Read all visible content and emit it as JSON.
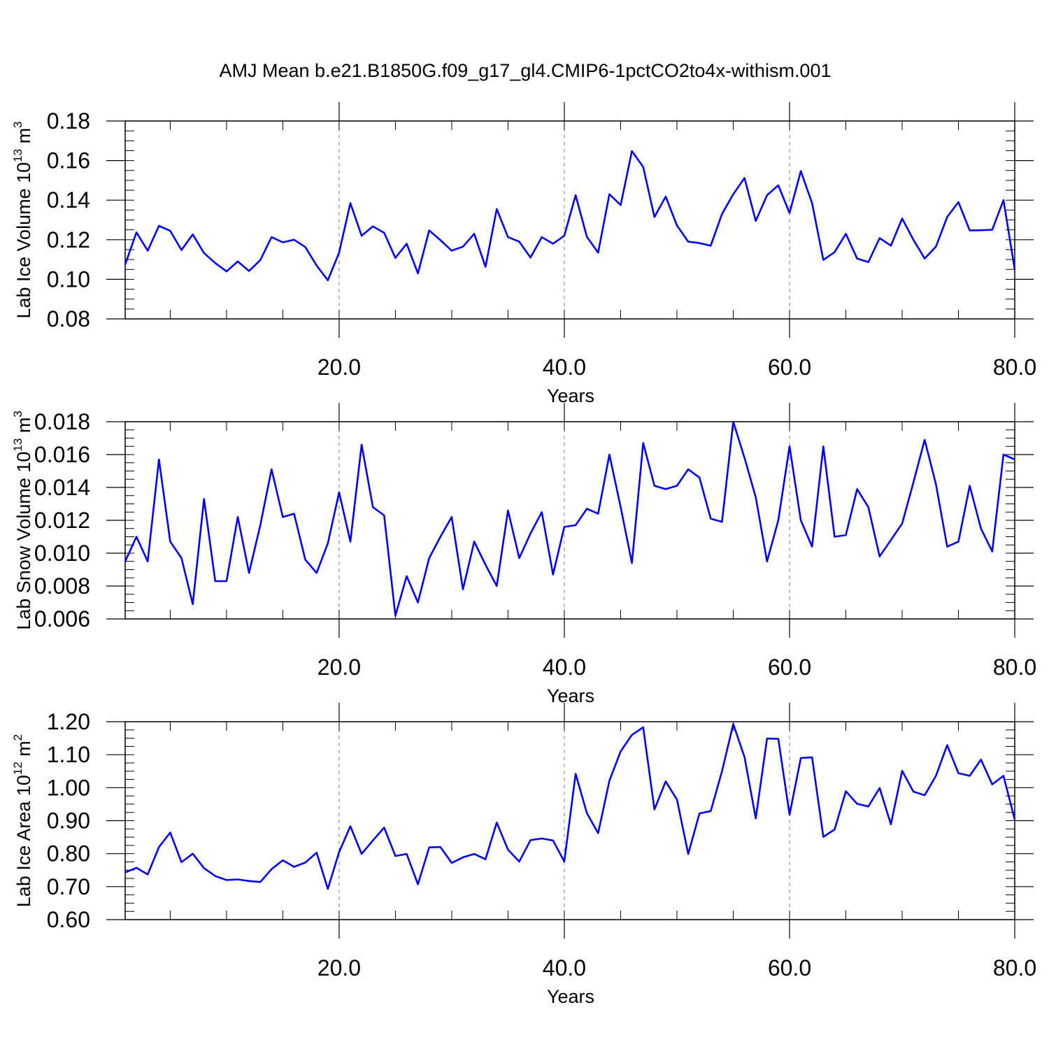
{
  "title": "AMJ Mean b.e21.B1850G.f09_g17_gl4.CMIP6-1pctCO2to4x-withism.001",
  "colors": {
    "line": "#0000ff",
    "axis": "#000000",
    "grid": "#7f7f7f"
  },
  "chart_data": [
    {
      "type": "line",
      "ylabel": {
        "text": "Lab Ice Volume 10",
        "sup": "13",
        "unit": " m",
        "unit_sup": "3"
      },
      "xlabel": "Years",
      "xlim": [
        1,
        80
      ],
      "ylim": [
        0.08,
        0.18
      ],
      "x_ticks": [
        20,
        40,
        60,
        80
      ],
      "x_tick_labels": [
        "20.0",
        "40.0",
        "60.0",
        "80.0"
      ],
      "y_ticks": [
        0.08,
        0.1,
        0.12,
        0.14,
        0.16,
        0.18
      ],
      "y_tick_labels": [
        "0.08",
        "0.10",
        "0.12",
        "0.14",
        "0.16",
        "0.18"
      ],
      "y_minor_step": 0.005,
      "grid": "vertical dashed at major x ticks",
      "series": [
        {
          "x_start": 1,
          "values": [
            0.1075,
            0.1237,
            0.1145,
            0.127,
            0.1245,
            0.1148,
            0.1227,
            0.1133,
            0.1082,
            0.104,
            0.109,
            0.1042,
            0.1097,
            0.1213,
            0.1187,
            0.12,
            0.1163,
            0.107,
            0.0995,
            0.1135,
            0.1385,
            0.122,
            0.1267,
            0.1235,
            0.1108,
            0.118,
            0.103,
            0.1247,
            0.1198,
            0.1145,
            0.1165,
            0.123,
            0.1063,
            0.1355,
            0.1213,
            0.119,
            0.111,
            0.1213,
            0.118,
            0.122,
            0.1425,
            0.1215,
            0.1135,
            0.143,
            0.1375,
            0.1648,
            0.1568,
            0.1315,
            0.1418,
            0.1272,
            0.119,
            0.1183,
            0.117,
            0.133,
            0.143,
            0.1512,
            0.1295,
            0.1425,
            0.1475,
            0.1335,
            0.1547,
            0.1385,
            0.1098,
            0.1137,
            0.123,
            0.1105,
            0.1087,
            0.1208,
            0.117,
            0.1307,
            0.12,
            0.1105,
            0.1165,
            0.1315,
            0.139,
            0.1247,
            0.1248,
            0.125,
            0.14,
            0.105
          ]
        }
      ]
    },
    {
      "type": "line",
      "ylabel": {
        "text": "Lab Snow Volume 10",
        "sup": "13",
        "unit": " m",
        "unit_sup": "3"
      },
      "xlabel": "Years",
      "xlim": [
        1,
        80
      ],
      "ylim": [
        0.006,
        0.018
      ],
      "x_ticks": [
        20,
        40,
        60,
        80
      ],
      "x_tick_labels": [
        "20.0",
        "40.0",
        "60.0",
        "80.0"
      ],
      "y_ticks": [
        0.006,
        0.008,
        0.01,
        0.012,
        0.014,
        0.016,
        0.018
      ],
      "y_tick_labels": [
        "0.006",
        "0.008",
        "0.010",
        "0.012",
        "0.014",
        "0.016",
        "0.018"
      ],
      "y_minor_step": 0.0005,
      "grid": "vertical dashed at major x ticks",
      "series": [
        {
          "x_start": 1,
          "values": [
            0.0095,
            0.011,
            0.0095,
            0.0157,
            0.0107,
            0.0097,
            0.0069,
            0.0133,
            0.0083,
            0.0083,
            0.0122,
            0.0088,
            0.0117,
            0.0151,
            0.0122,
            0.0124,
            0.0096,
            0.0088,
            0.0106,
            0.0137,
            0.0107,
            0.0166,
            0.0128,
            0.0123,
            0.0062,
            0.0086,
            0.007,
            0.0097,
            0.011,
            0.0122,
            0.0078,
            0.0107,
            0.0093,
            0.008,
            0.0126,
            0.0097,
            0.0112,
            0.0125,
            0.0087,
            0.0116,
            0.0117,
            0.0127,
            0.0124,
            0.016,
            0.0128,
            0.0094,
            0.0167,
            0.0141,
            0.0139,
            0.0141,
            0.0151,
            0.0146,
            0.0121,
            0.0119,
            0.018,
            0.0158,
            0.0134,
            0.0095,
            0.012,
            0.0165,
            0.012,
            0.0104,
            0.0165,
            0.011,
            0.0111,
            0.0139,
            0.0128,
            0.0098,
            0.0108,
            0.0118,
            0.0143,
            0.0169,
            0.0142,
            0.0104,
            0.0107,
            0.0141,
            0.0115,
            0.0101,
            0.016,
            0.0157
          ]
        }
      ]
    },
    {
      "type": "line",
      "ylabel": {
        "text": "Lab Ice Area 10",
        "sup": "12",
        "unit": " m",
        "unit_sup": "2"
      },
      "xlabel": "Years",
      "xlim": [
        1,
        80
      ],
      "ylim": [
        0.6,
        1.2
      ],
      "x_ticks": [
        20,
        40,
        60,
        80
      ],
      "x_tick_labels": [
        "20.0",
        "40.0",
        "60.0",
        "80.0"
      ],
      "y_ticks": [
        0.6,
        0.7,
        0.8,
        0.9,
        1.0,
        1.1,
        1.2
      ],
      "y_tick_labels": [
        "0.60",
        "0.70",
        "0.80",
        "0.90",
        "1.00",
        "1.10",
        "1.20"
      ],
      "y_minor_step": 0.025,
      "grid": "vertical dashed at major x ticks",
      "series": [
        {
          "x_start": 1,
          "values": [
            0.743,
            0.757,
            0.737,
            0.82,
            0.864,
            0.774,
            0.8,
            0.756,
            0.732,
            0.72,
            0.722,
            0.717,
            0.714,
            0.753,
            0.78,
            0.76,
            0.773,
            0.803,
            0.693,
            0.805,
            0.883,
            0.799,
            0.84,
            0.879,
            0.793,
            0.799,
            0.707,
            0.819,
            0.82,
            0.772,
            0.789,
            0.799,
            0.783,
            0.894,
            0.812,
            0.776,
            0.841,
            0.846,
            0.84,
            0.776,
            1.042,
            0.923,
            0.862,
            1.021,
            1.11,
            1.16,
            1.183,
            0.934,
            1.019,
            0.964,
            0.799,
            0.922,
            0.929,
            1.05,
            1.193,
            1.093,
            0.907,
            1.149,
            1.148,
            0.918,
            1.09,
            1.092,
            0.851,
            0.873,
            0.989,
            0.951,
            0.943,
            0.999,
            0.889,
            1.051,
            0.988,
            0.977,
            1.036,
            1.129,
            1.044,
            1.036,
            1.085,
            1.01,
            1.036,
            0.903
          ]
        }
      ]
    }
  ]
}
